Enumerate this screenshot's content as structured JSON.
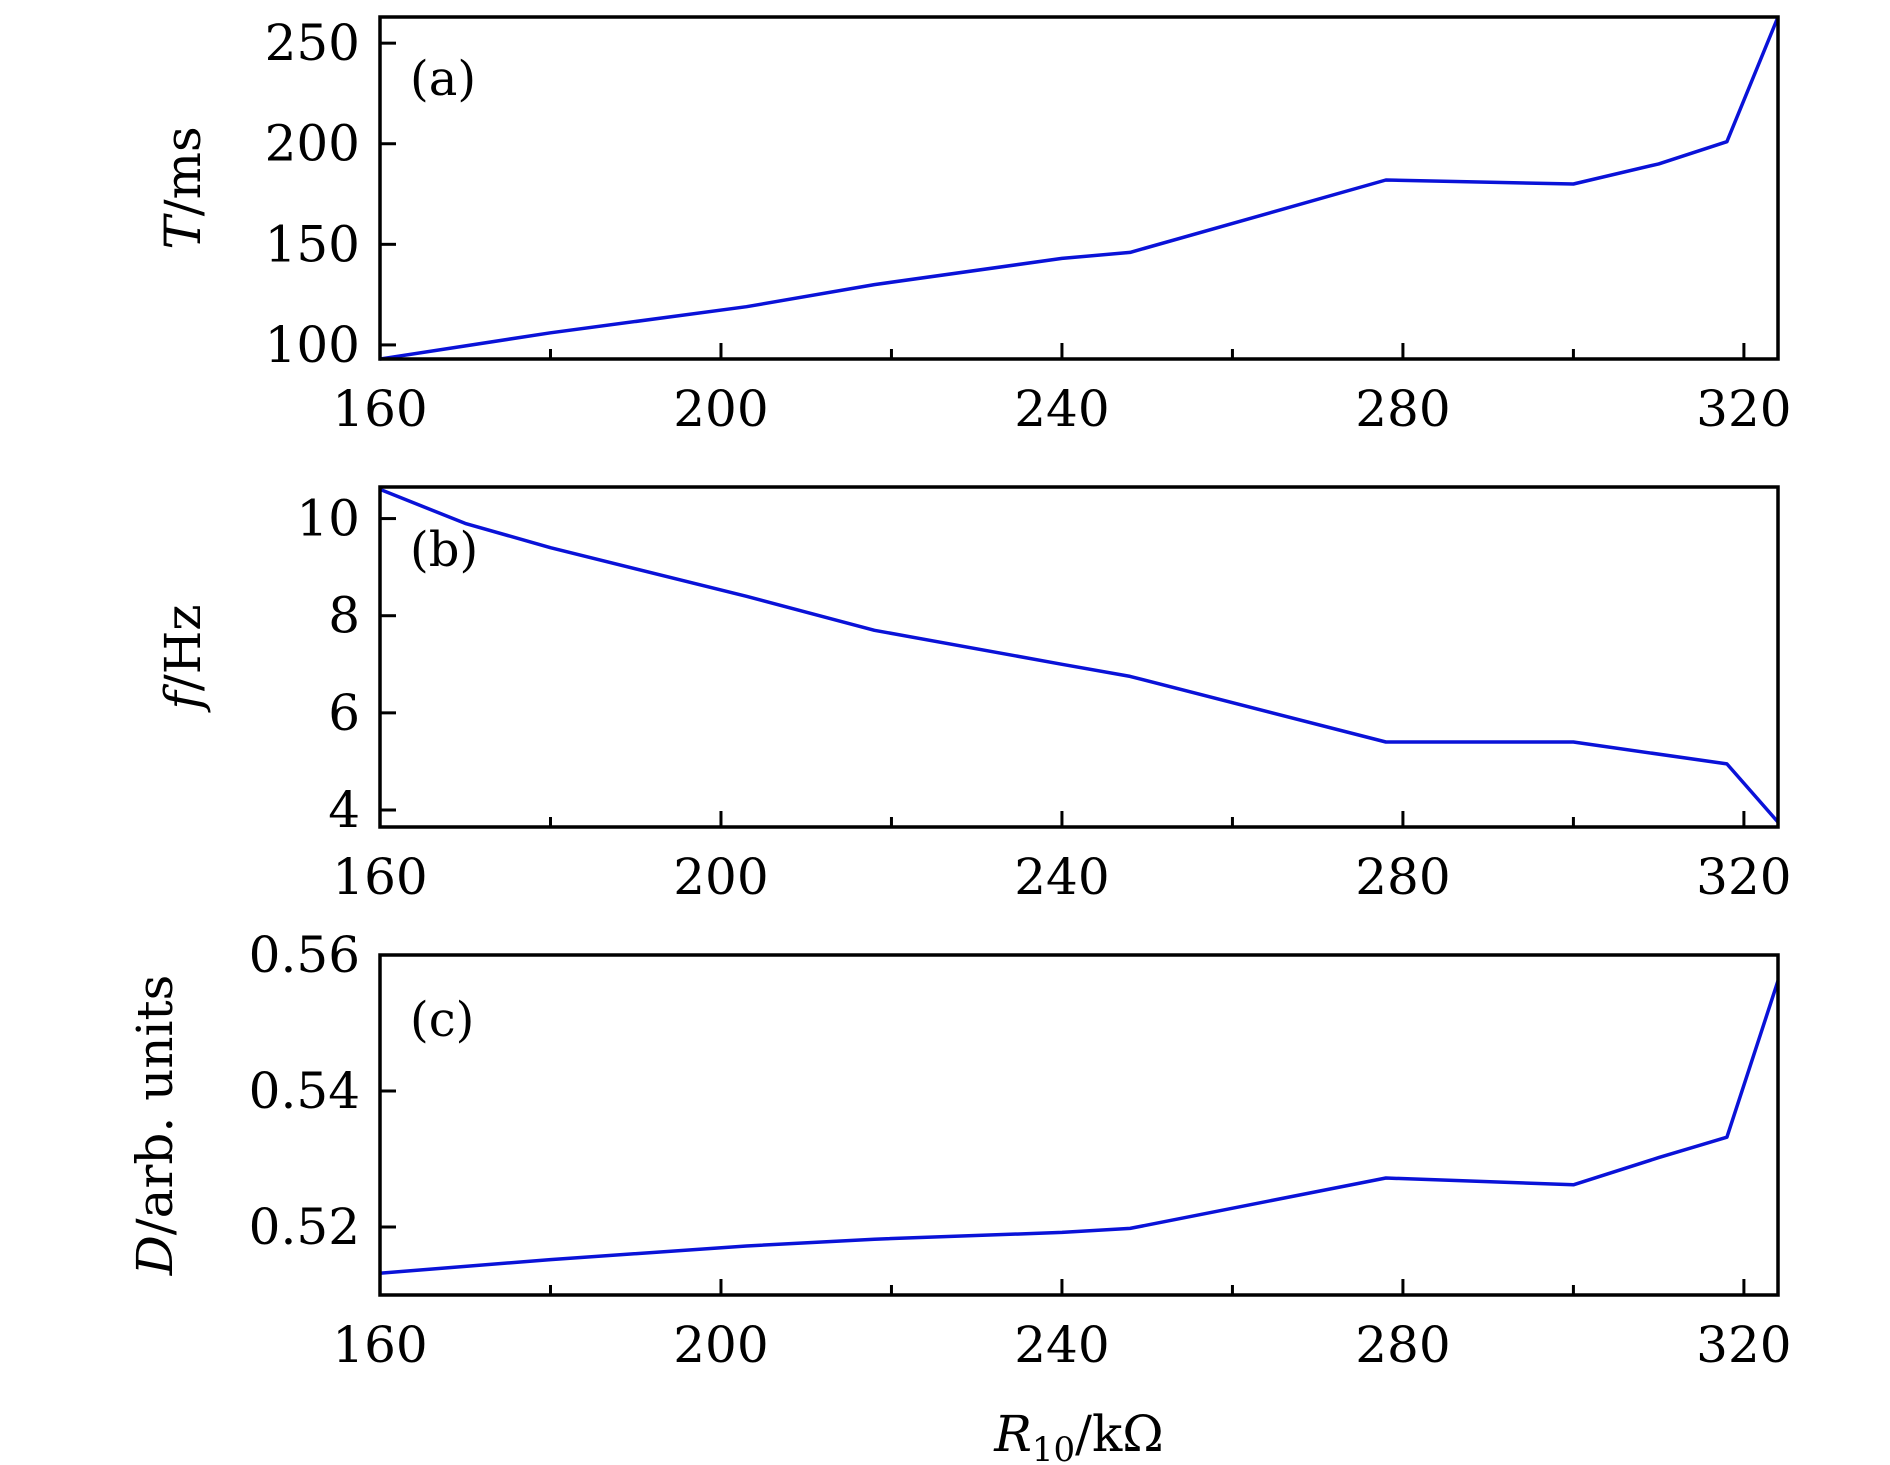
{
  "chart_data": [
    {
      "type": "line",
      "panel_label": "(a)",
      "ylabel_symbol": "T",
      "ylabel_unit": "/ms",
      "xlim": [
        160,
        324
      ],
      "ylim": [
        93,
        263
      ],
      "xticks": [
        160,
        200,
        240,
        280,
        320
      ],
      "xminor": [
        180,
        220,
        260,
        300
      ],
      "yticks": [
        100,
        150,
        200,
        250
      ],
      "ytick_labels": [
        "100",
        "150",
        "200",
        "250"
      ],
      "series": [
        {
          "name": "T",
          "x": [
            160,
            180,
            203,
            218,
            240,
            248,
            278,
            300,
            310,
            318,
            324
          ],
          "y": [
            93,
            106,
            119,
            130,
            143,
            146,
            182,
            180,
            190,
            201,
            263
          ]
        }
      ]
    },
    {
      "type": "line",
      "panel_label": "(b)",
      "ylabel_symbol": "f",
      "ylabel_unit": "/Hz",
      "xlim": [
        160,
        324
      ],
      "ylim": [
        3.65,
        10.65
      ],
      "xticks": [
        160,
        200,
        240,
        280,
        320
      ],
      "xminor": [
        180,
        220,
        260,
        300
      ],
      "yticks": [
        4,
        6,
        8,
        10
      ],
      "ytick_labels": [
        "4",
        "6",
        "8",
        "10"
      ],
      "series": [
        {
          "name": "f",
          "x": [
            160,
            170,
            180,
            203,
            218,
            240,
            248,
            278,
            300,
            318,
            324
          ],
          "y": [
            10.6,
            9.9,
            9.4,
            8.4,
            7.7,
            7.0,
            6.75,
            5.4,
            5.4,
            4.95,
            3.75
          ]
        }
      ]
    },
    {
      "type": "line",
      "panel_label": "(c)",
      "ylabel_symbol": "D",
      "ylabel_unit": "/arb. units",
      "xlim": [
        160,
        324
      ],
      "ylim": [
        0.51,
        0.56
      ],
      "xticks": [
        160,
        200,
        240,
        280,
        320
      ],
      "xminor": [
        180,
        220,
        260,
        300
      ],
      "yticks": [
        0.52,
        0.54,
        0.56
      ],
      "ytick_labels": [
        "0.52",
        "0.54",
        "0.56"
      ],
      "xlabel_symbol": "R",
      "xlabel_subscript": "10",
      "xlabel_unit": "/kΩ",
      "series": [
        {
          "name": "D",
          "x": [
            160,
            180,
            203,
            218,
            240,
            248,
            278,
            300,
            310,
            318,
            324
          ],
          "y": [
            0.5132,
            0.5152,
            0.5172,
            0.5182,
            0.5192,
            0.5198,
            0.5272,
            0.5262,
            0.5302,
            0.5332,
            0.5562
          ]
        }
      ]
    }
  ],
  "colors": {
    "line": "#0a12d8",
    "axis": "#000000"
  }
}
